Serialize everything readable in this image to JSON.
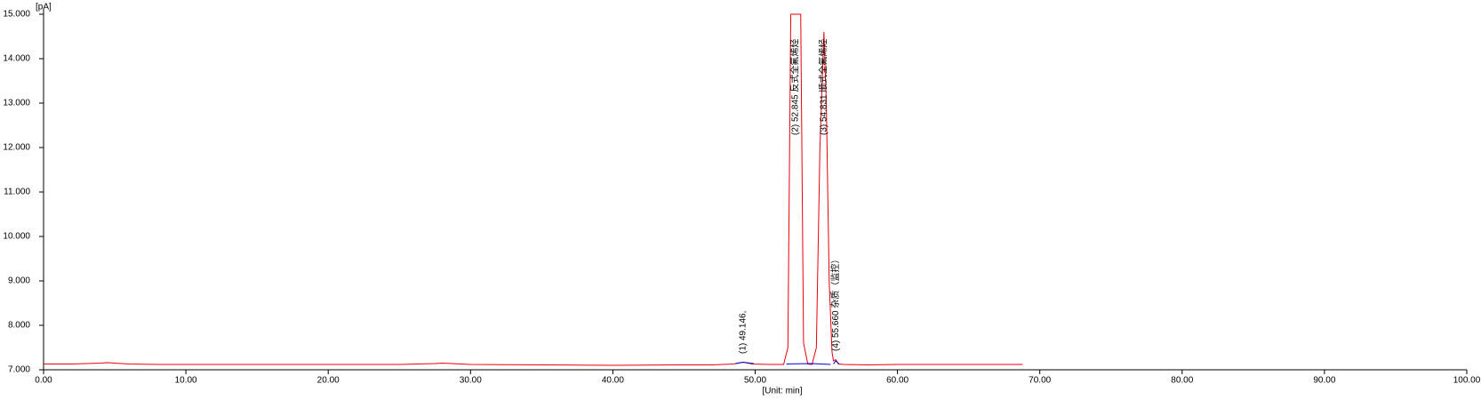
{
  "chart_data": {
    "type": "line",
    "y_label": "[pA]",
    "x_label": "[Unit: min]",
    "xlim": [
      0,
      100
    ],
    "ylim": [
      7,
      15
    ],
    "xticks": [
      {
        "value": 0,
        "label": "0.00"
      },
      {
        "value": 10,
        "label": "10.00"
      },
      {
        "value": 20,
        "label": "20.00"
      },
      {
        "value": 30,
        "label": "30.00"
      },
      {
        "value": 40,
        "label": "40.00"
      },
      {
        "value": 50,
        "label": "50.00"
      },
      {
        "value": 60,
        "label": "60.00"
      },
      {
        "value": 70,
        "label": "70.00"
      },
      {
        "value": 80,
        "label": "80.00"
      },
      {
        "value": 90,
        "label": "90.00"
      },
      {
        "value": 100,
        "label": "100.00"
      }
    ],
    "yticks": [
      {
        "value": 7,
        "label": "7.000"
      },
      {
        "value": 8,
        "label": "8.000"
      },
      {
        "value": 9,
        "label": "9.000"
      },
      {
        "value": 10,
        "label": "10.000"
      },
      {
        "value": 11,
        "label": "11.000"
      },
      {
        "value": 12,
        "label": "12.000"
      },
      {
        "value": 13,
        "label": "13.000"
      },
      {
        "value": 14,
        "label": "14.000"
      },
      {
        "value": 15,
        "label": "15.000"
      }
    ],
    "series": [
      {
        "color": "#e8000b",
        "x": [
          0,
          2,
          4,
          4.5,
          5,
          6,
          8,
          10,
          15,
          20,
          25,
          27.5,
          28,
          30,
          35,
          40,
          45,
          47,
          48.5,
          49.146,
          49.8,
          51,
          52.0,
          52.3,
          52.5,
          52.845,
          53.2,
          53.4,
          53.7,
          54.0,
          54.3,
          54.55,
          54.831,
          55.0,
          55.2,
          55.4,
          55.5,
          55.66,
          55.85,
          56.2,
          58,
          60,
          62,
          65,
          68.8
        ],
        "values": [
          7.13,
          7.13,
          7.15,
          7.16,
          7.15,
          7.13,
          7.12,
          7.12,
          7.12,
          7.12,
          7.12,
          7.14,
          7.15,
          7.12,
          7.11,
          7.1,
          7.11,
          7.11,
          7.13,
          7.17,
          7.13,
          7.12,
          7.12,
          7.5,
          15,
          15,
          15,
          7.6,
          7.13,
          7.12,
          7.5,
          12,
          14.6,
          13,
          9,
          7.4,
          7.2,
          7.23,
          7.13,
          7.12,
          7.11,
          7.12,
          7.12,
          7.12,
          7.12
        ]
      },
      {
        "color": "#0000e0",
        "x": [
          48.6,
          49.146,
          49.9,
          50.5,
          52.2,
          54.0,
          55.3,
          55.4,
          55.5,
          55.66,
          55.9
        ],
        "values": [
          7.14,
          7.17,
          7.14,
          null,
          7.13,
          7.14,
          7.12,
          null,
          7.13,
          7.2,
          7.13
        ]
      }
    ],
    "annotations": [
      {
        "text": "(1) 49.146,",
        "x": 49.146
      },
      {
        "text": "(2) 52.845 反式全氟烯烃",
        "x": 52.845
      },
      {
        "text": "(3) 54.831 顺式全氟烯烃",
        "x": 54.831
      },
      {
        "text": "(4) 55.660 杂质（监控）",
        "x": 55.66
      }
    ]
  }
}
